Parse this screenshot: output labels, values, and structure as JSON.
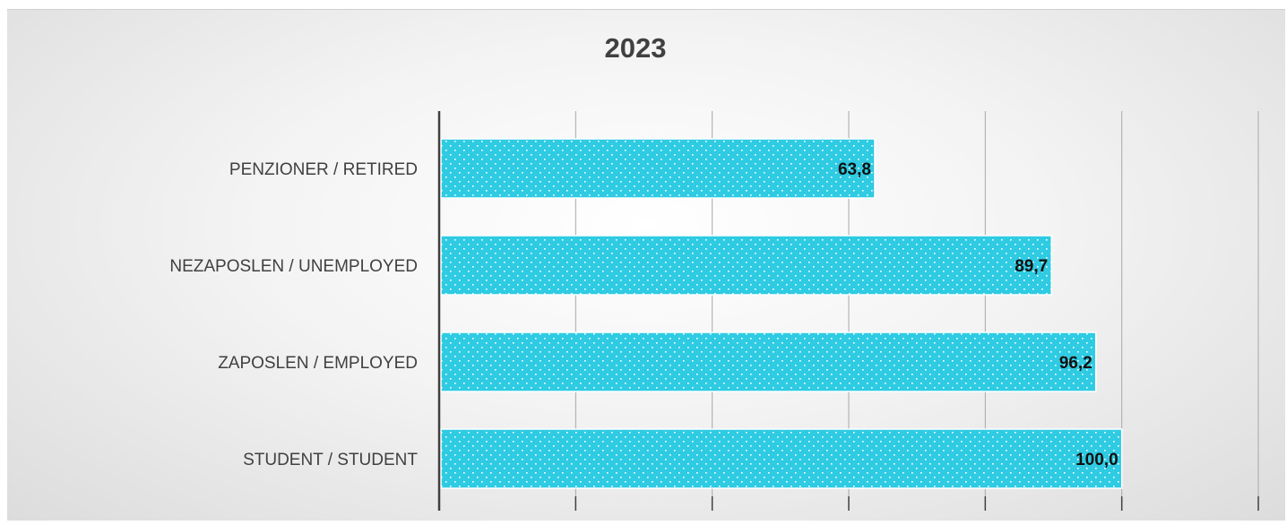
{
  "chart_data": {
    "type": "bar",
    "orientation": "horizontal",
    "title": "2023",
    "categories": [
      "PENZIONER / RETIRED",
      "NEZAPOSLEN / UNEMPLOYED",
      "ZAPOSLEN / EMPLOYED",
      "STUDENT / STUDENT"
    ],
    "values": [
      63.8,
      89.7,
      96.2,
      100.0
    ],
    "value_labels": [
      "63,8",
      "89,7",
      "96,2",
      "100,0"
    ],
    "xlim": [
      0,
      120
    ],
    "grid": true,
    "bar_color": "#2ecbe3",
    "bar_pattern": "white-dots",
    "axis_tick_labels_shown": false
  }
}
